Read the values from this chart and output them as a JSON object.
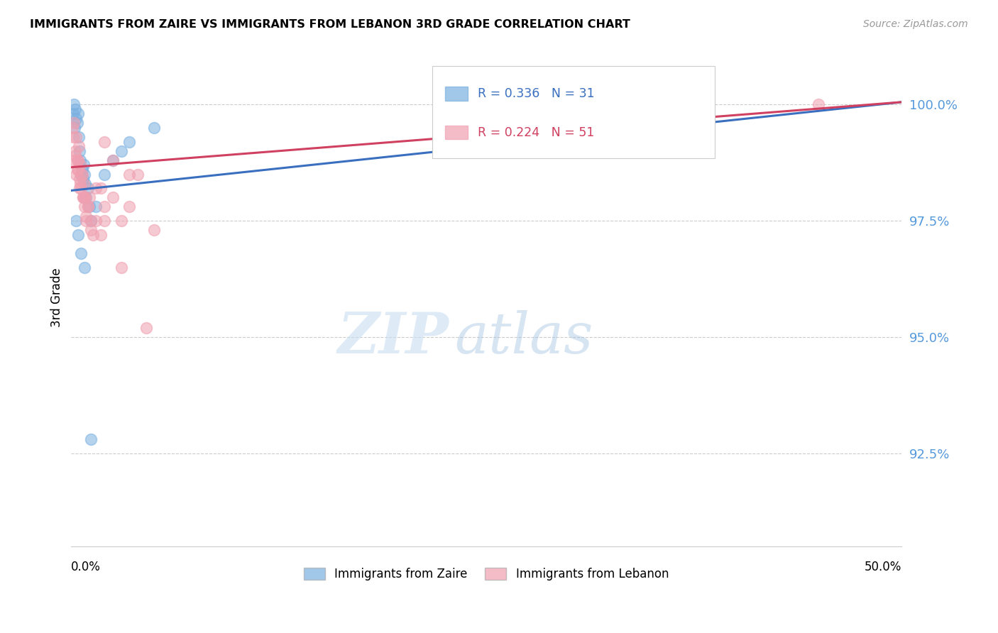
{
  "title": "IMMIGRANTS FROM ZAIRE VS IMMIGRANTS FROM LEBANON 3RD GRADE CORRELATION CHART",
  "source": "Source: ZipAtlas.com",
  "ylabel": "3rd Grade",
  "y_ticks": [
    92.5,
    95.0,
    97.5,
    100.0
  ],
  "y_tick_labels": [
    "92.5%",
    "95.0%",
    "97.5%",
    "100.0%"
  ],
  "x_min": 0.0,
  "x_max": 50.0,
  "y_min": 90.5,
  "y_max": 101.2,
  "zaire_color": "#7ab0e0",
  "lebanon_color": "#f0a0b0",
  "zaire_line_color": "#3a6fc0",
  "lebanon_line_color": "#d04060",
  "zaire_R": 0.336,
  "zaire_N": 31,
  "lebanon_R": 0.224,
  "lebanon_N": 51,
  "legend_label_zaire": "Immigrants from Zaire",
  "legend_label_lebanon": "Immigrants from Lebanon",
  "zaire_x": [
    0.1,
    0.15,
    0.2,
    0.25,
    0.3,
    0.35,
    0.4,
    0.45,
    0.5,
    0.55,
    0.6,
    0.65,
    0.7,
    0.75,
    0.8,
    0.85,
    0.9,
    1.0,
    1.1,
    1.2,
    1.5,
    2.0,
    2.5,
    3.0,
    3.5,
    5.0,
    0.3,
    0.4,
    0.6,
    0.8,
    1.2
  ],
  "zaire_y": [
    99.8,
    100.0,
    99.5,
    99.9,
    99.7,
    99.6,
    99.8,
    99.3,
    99.0,
    98.8,
    98.5,
    98.6,
    98.4,
    98.7,
    98.5,
    98.3,
    98.0,
    98.2,
    97.8,
    97.5,
    97.8,
    98.5,
    98.8,
    99.0,
    99.2,
    99.5,
    97.5,
    97.2,
    96.8,
    96.5,
    92.8
  ],
  "lebanon_x": [
    0.05,
    0.1,
    0.15,
    0.2,
    0.25,
    0.3,
    0.35,
    0.4,
    0.45,
    0.5,
    0.55,
    0.6,
    0.65,
    0.7,
    0.75,
    0.8,
    0.85,
    0.9,
    1.0,
    1.1,
    1.2,
    1.5,
    1.8,
    2.0,
    2.5,
    3.0,
    3.5,
    4.0,
    5.0,
    2.0,
    2.5,
    3.5,
    0.5,
    0.7,
    1.0,
    1.5,
    2.0,
    0.3,
    0.4,
    0.6,
    0.8,
    1.2,
    1.8,
    3.0,
    4.5,
    45.0,
    0.25,
    0.35,
    0.55,
    0.9,
    1.3
  ],
  "lebanon_y": [
    99.5,
    99.3,
    99.6,
    98.8,
    99.0,
    98.5,
    98.8,
    98.6,
    99.1,
    98.4,
    98.7,
    98.2,
    98.5,
    98.0,
    98.3,
    97.8,
    98.0,
    97.5,
    97.8,
    98.0,
    97.3,
    97.5,
    98.2,
    97.8,
    98.0,
    97.5,
    97.8,
    98.5,
    97.3,
    99.2,
    98.8,
    98.5,
    98.2,
    98.0,
    97.8,
    98.2,
    97.5,
    99.3,
    98.8,
    98.5,
    98.0,
    97.5,
    97.2,
    96.5,
    95.2,
    100.0,
    98.9,
    98.6,
    98.3,
    97.6,
    97.2
  ]
}
